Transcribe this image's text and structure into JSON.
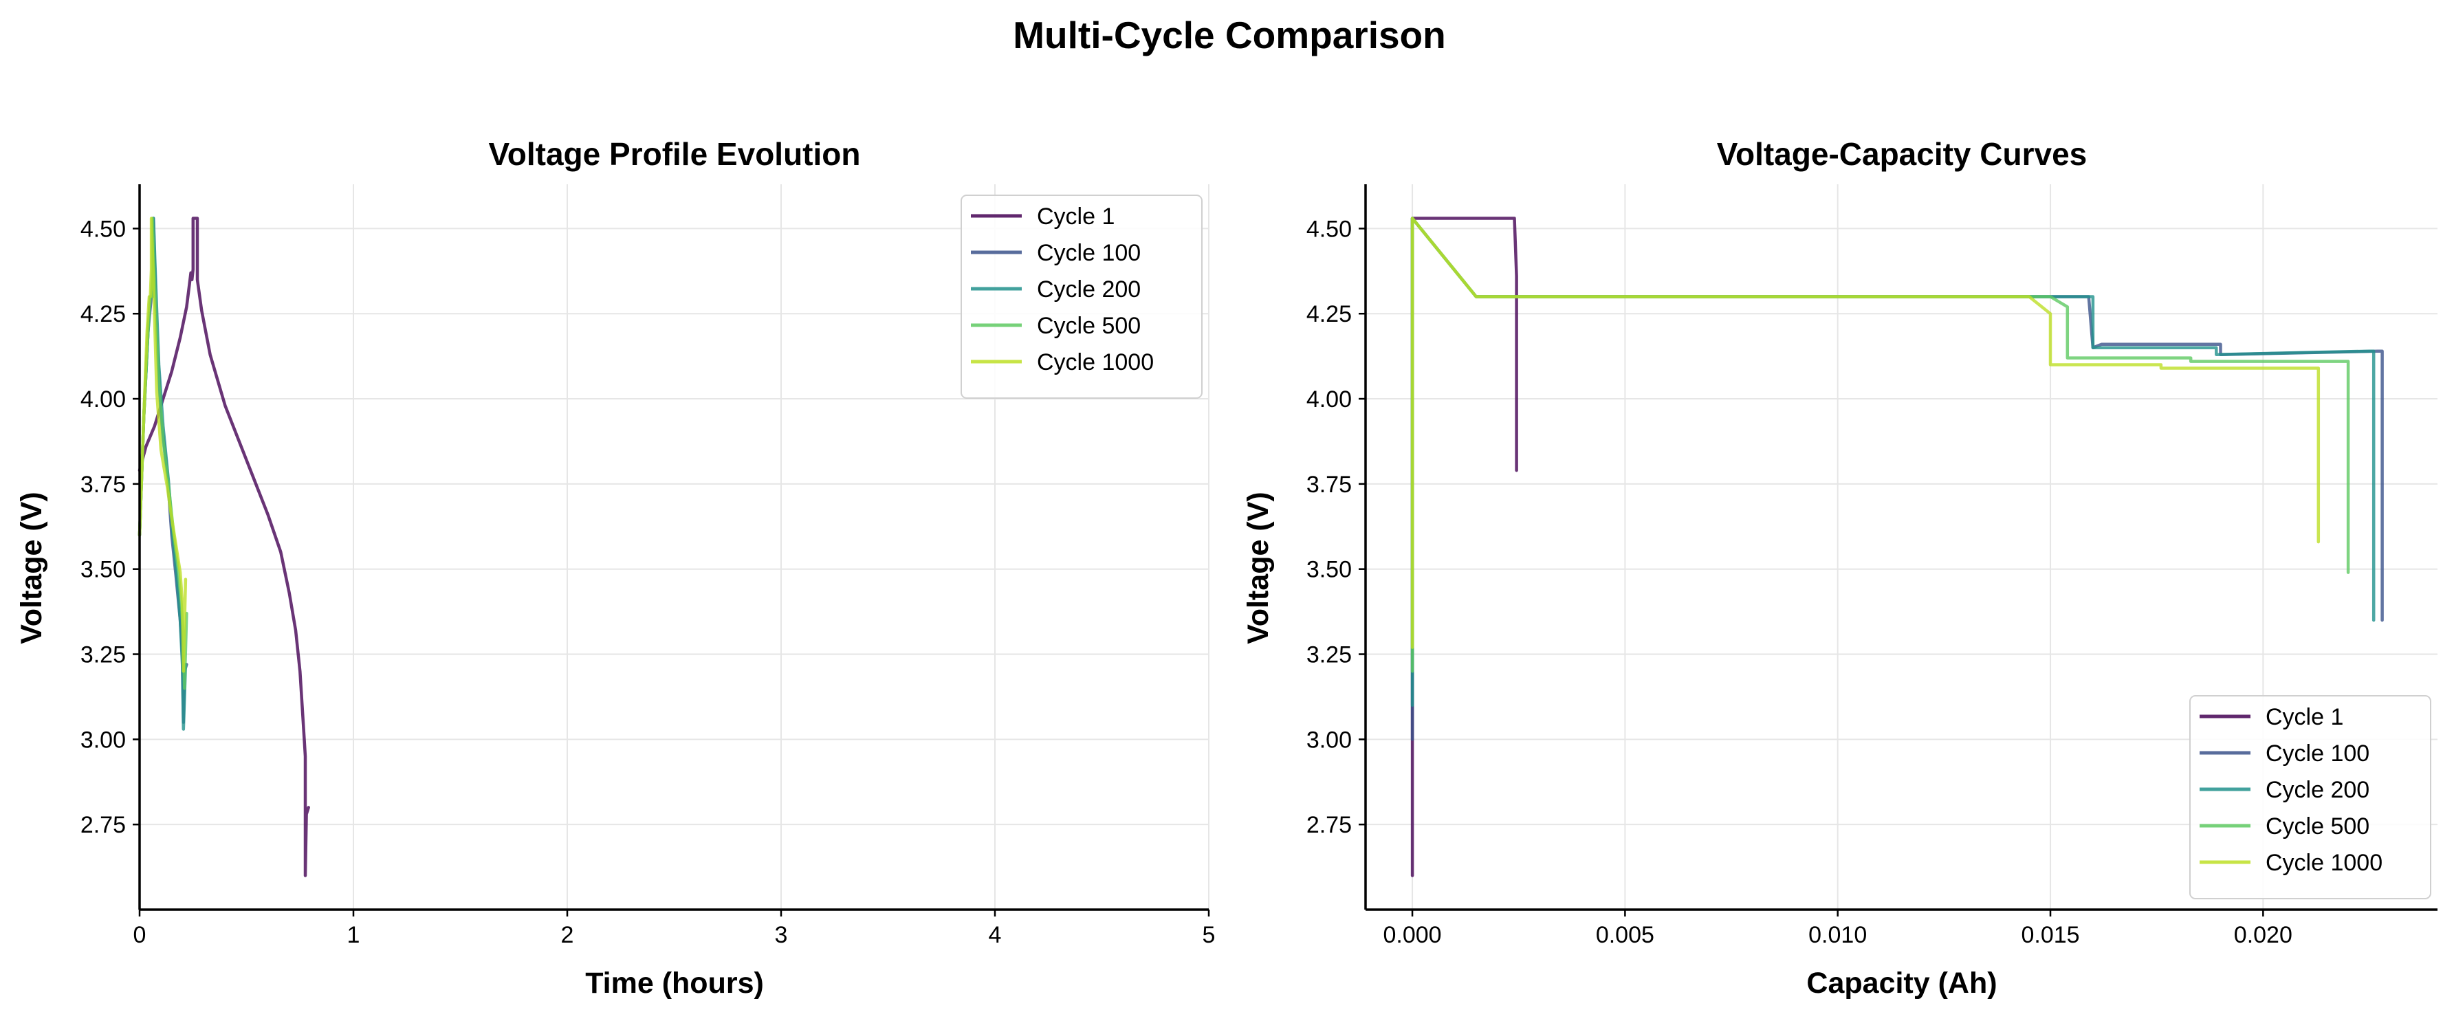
{
  "figure": {
    "suptitle": "Multi-Cycle Comparison"
  },
  "colors": {
    "Cycle 1": "#440154",
    "Cycle 100": "#3b528b",
    "Cycle 200": "#21918c",
    "Cycle 500": "#5ec962",
    "Cycle 1000": "#bddf26"
  },
  "chart_data": [
    {
      "type": "line",
      "title": "Voltage Profile Evolution",
      "xlabel": "Time (hours)",
      "ylabel": "Voltage (V)",
      "xlim": [
        0,
        5
      ],
      "ylim": [
        2.5,
        4.63
      ],
      "xticks": [
        0,
        1,
        2,
        3,
        4,
        5
      ],
      "xtick_labels": [
        "0",
        "1",
        "2",
        "3",
        "4",
        "5"
      ],
      "yticks": [
        2.75,
        3.0,
        3.25,
        3.5,
        3.75,
        4.0,
        4.25,
        4.5
      ],
      "ytick_labels": [
        "2.75",
        "3.00",
        "3.25",
        "3.50",
        "3.75",
        "4.00",
        "4.25",
        "4.50"
      ],
      "grid": true,
      "legend_position": "top-right",
      "series": [
        {
          "name": "Cycle 1",
          "x": [
            0.0,
            0.03,
            0.07,
            0.11,
            0.15,
            0.19,
            0.22,
            0.24,
            0.245,
            0.25,
            0.25,
            0.27,
            0.27,
            0.29,
            0.33,
            0.4,
            0.5,
            0.6,
            0.66,
            0.7,
            0.73,
            0.75,
            0.76,
            0.77,
            0.775,
            0.775,
            0.78,
            0.79
          ],
          "y": [
            3.79,
            3.86,
            3.92,
            4.0,
            4.08,
            4.18,
            4.27,
            4.37,
            4.35,
            4.38,
            4.53,
            4.53,
            4.35,
            4.26,
            4.13,
            3.98,
            3.82,
            3.66,
            3.55,
            3.43,
            3.32,
            3.2,
            3.1,
            3.0,
            2.95,
            2.6,
            2.78,
            2.8
          ]
        },
        {
          "name": "Cycle 100",
          "x": [
            0.0,
            0.02,
            0.04,
            0.055,
            0.06,
            0.065,
            0.065,
            0.07,
            0.08,
            0.1,
            0.13,
            0.15,
            0.17,
            0.19,
            0.2,
            0.205,
            0.21,
            0.22
          ],
          "y": [
            3.6,
            3.95,
            4.2,
            4.3,
            4.3,
            4.38,
            4.53,
            4.4,
            4.2,
            3.95,
            3.78,
            3.6,
            3.48,
            3.35,
            3.25,
            3.05,
            3.2,
            3.22
          ]
        },
        {
          "name": "Cycle 200",
          "x": [
            0.0,
            0.02,
            0.04,
            0.05,
            0.06,
            0.065,
            0.065,
            0.075,
            0.09,
            0.11,
            0.135,
            0.155,
            0.175,
            0.19,
            0.2,
            0.205,
            0.215
          ],
          "y": [
            3.6,
            3.95,
            4.2,
            4.3,
            4.3,
            4.38,
            4.53,
            4.35,
            4.1,
            3.92,
            3.76,
            3.6,
            3.47,
            3.35,
            3.22,
            3.03,
            3.22
          ]
        },
        {
          "name": "Cycle 500",
          "x": [
            0.0,
            0.02,
            0.04,
            0.05,
            0.055,
            0.06,
            0.06,
            0.07,
            0.09,
            0.11,
            0.14,
            0.16,
            0.18,
            0.195,
            0.205,
            0.21,
            0.22
          ],
          "y": [
            3.6,
            3.95,
            4.2,
            4.3,
            4.3,
            4.38,
            4.53,
            4.35,
            4.05,
            3.88,
            3.72,
            3.6,
            3.5,
            3.4,
            3.3,
            3.15,
            3.37
          ]
        },
        {
          "name": "Cycle 1000",
          "x": [
            0.0,
            0.02,
            0.035,
            0.045,
            0.05,
            0.055,
            0.055,
            0.065,
            0.08,
            0.1,
            0.13,
            0.15,
            0.17,
            0.19,
            0.2,
            0.205,
            0.215
          ],
          "y": [
            3.6,
            3.95,
            4.2,
            4.3,
            4.3,
            4.38,
            4.53,
            4.35,
            4.02,
            3.85,
            3.74,
            3.65,
            3.57,
            3.49,
            3.4,
            3.2,
            3.47
          ]
        }
      ]
    },
    {
      "type": "line",
      "title": "Voltage-Capacity Curves",
      "xlabel": "Capacity (Ah)",
      "ylabel": "Voltage (V)",
      "xlim": [
        -0.0011,
        0.0241
      ],
      "ylim": [
        2.5,
        4.63
      ],
      "xticks": [
        0.0,
        0.005,
        0.01,
        0.015,
        0.02
      ],
      "xtick_labels": [
        "0.000",
        "0.005",
        "0.010",
        "0.015",
        "0.020"
      ],
      "yticks": [
        2.75,
        3.0,
        3.25,
        3.5,
        3.75,
        4.0,
        4.25,
        4.5
      ],
      "ytick_labels": [
        "2.75",
        "3.00",
        "3.25",
        "3.50",
        "3.75",
        "4.00",
        "4.25",
        "4.50"
      ],
      "grid": true,
      "legend_position": "bottom-right",
      "series": [
        {
          "name": "Cycle 1",
          "x": [
            0.0,
            0.0,
            0.0,
            0.0,
            0.0024,
            0.0024,
            0.00245,
            0.00245
          ],
          "y": [
            2.6,
            3.2,
            4.0,
            4.53,
            4.53,
            4.53,
            4.36,
            3.79
          ]
        },
        {
          "name": "Cycle 100",
          "x": [
            0.0,
            0.0,
            0.0015,
            0.005,
            0.01,
            0.015,
            0.0159,
            0.0159,
            0.016,
            0.0162,
            0.0189,
            0.019,
            0.019,
            0.0227,
            0.0228,
            0.0228
          ],
          "y": [
            3.0,
            4.53,
            4.3,
            4.3,
            4.3,
            4.3,
            4.3,
            4.3,
            4.15,
            4.16,
            4.16,
            4.16,
            4.13,
            4.14,
            4.14,
            3.35
          ]
        },
        {
          "name": "Cycle 200",
          "x": [
            0.0,
            0.0,
            0.0015,
            0.005,
            0.01,
            0.015,
            0.0159,
            0.016,
            0.016,
            0.0189,
            0.0189,
            0.0225,
            0.0226,
            0.0226
          ],
          "y": [
            3.1,
            4.53,
            4.3,
            4.3,
            4.3,
            4.3,
            4.3,
            4.3,
            4.15,
            4.15,
            4.13,
            4.14,
            4.14,
            3.35
          ]
        },
        {
          "name": "Cycle 500",
          "x": [
            0.0,
            0.0,
            0.0015,
            0.005,
            0.01,
            0.015,
            0.0154,
            0.0154,
            0.0183,
            0.0183,
            0.022,
            0.022
          ],
          "y": [
            3.2,
            4.53,
            4.3,
            4.3,
            4.3,
            4.3,
            4.27,
            4.12,
            4.12,
            4.11,
            4.11,
            3.49
          ]
        },
        {
          "name": "Cycle 1000",
          "x": [
            0.0,
            0.0,
            0.0015,
            0.005,
            0.01,
            0.0145,
            0.015,
            0.015,
            0.0176,
            0.0176,
            0.0213,
            0.0213
          ],
          "y": [
            3.27,
            4.53,
            4.3,
            4.3,
            4.3,
            4.3,
            4.25,
            4.1,
            4.1,
            4.09,
            4.09,
            3.58
          ]
        }
      ]
    }
  ]
}
